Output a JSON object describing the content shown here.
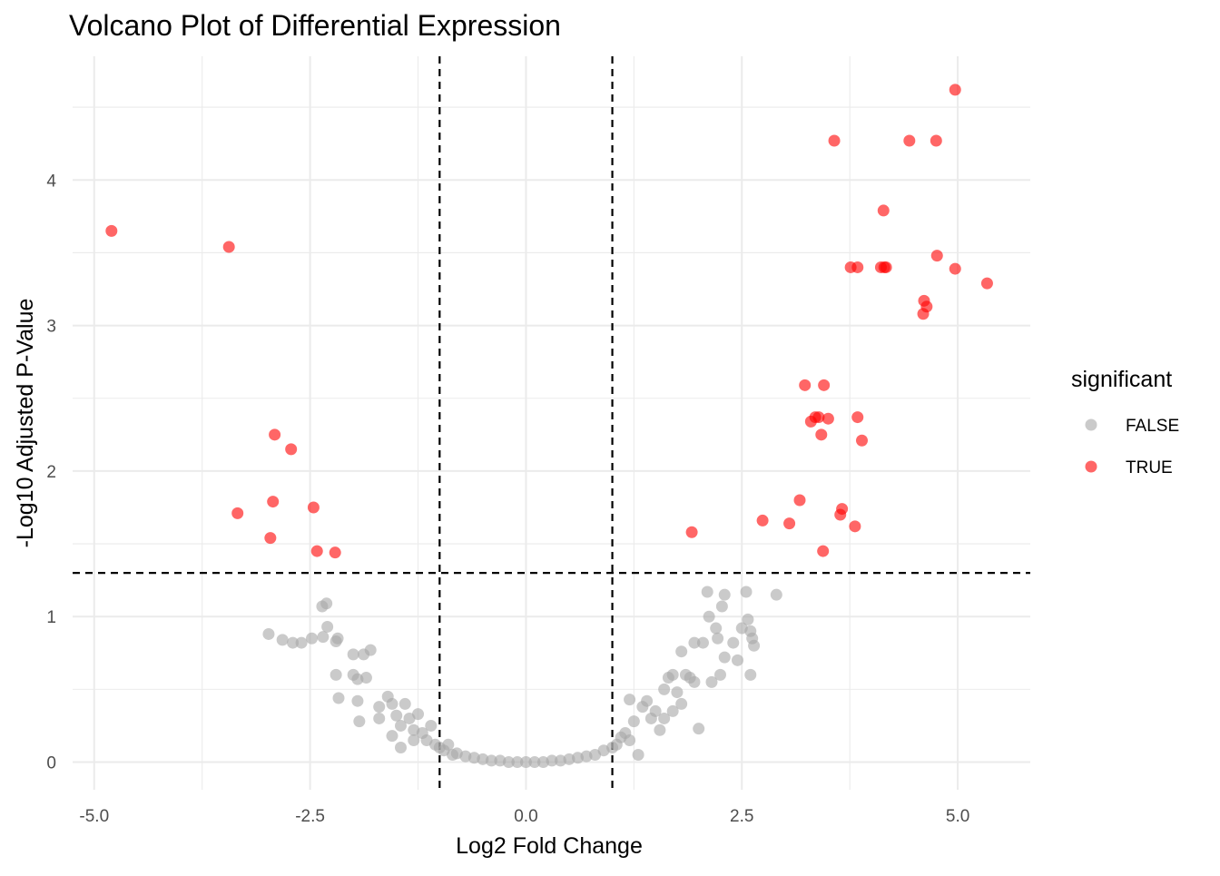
{
  "chart_data": {
    "type": "scatter",
    "title": "Volcano Plot of Differential Expression",
    "xlabel": "Log2 Fold Change",
    "ylabel": "-Log10 Adjusted P-Value",
    "xlim": [
      -5.25,
      5.84
    ],
    "ylim": [
      -0.19,
      4.85
    ],
    "x_ticks": [
      -5.0,
      -2.5,
      0.0,
      2.5,
      5.0
    ],
    "x_tick_labels": [
      "-5.0",
      "-2.5",
      "0.0",
      "2.5",
      "5.0"
    ],
    "y_ticks": [
      0,
      1,
      2,
      3,
      4
    ],
    "y_tick_labels": [
      "0",
      "1",
      "2",
      "3",
      "4"
    ],
    "grid": true,
    "thresholds": {
      "x": [
        -1,
        1
      ],
      "y": 1.3
    },
    "legend": {
      "title": "significant",
      "placement": "right",
      "entries": [
        "FALSE",
        "TRUE"
      ]
    },
    "colors": {
      "FALSE": "#a6a6a6",
      "TRUE": "#ff0000"
    },
    "series": [
      {
        "name": "TRUE",
        "points": [
          [
            -4.8,
            3.65
          ],
          [
            -3.44,
            3.54
          ],
          [
            -2.91,
            2.25
          ],
          [
            -2.72,
            2.15
          ],
          [
            -2.93,
            1.79
          ],
          [
            -3.34,
            1.71
          ],
          [
            -2.46,
            1.75
          ],
          [
            -2.96,
            1.54
          ],
          [
            -2.42,
            1.45
          ],
          [
            -2.21,
            1.44
          ],
          [
            4.97,
            4.62
          ],
          [
            3.57,
            4.27
          ],
          [
            4.44,
            4.27
          ],
          [
            4.75,
            4.27
          ],
          [
            4.14,
            3.79
          ],
          [
            4.76,
            3.48
          ],
          [
            3.76,
            3.4
          ],
          [
            3.84,
            3.4
          ],
          [
            4.11,
            3.4
          ],
          [
            4.15,
            3.4
          ],
          [
            4.17,
            3.4
          ],
          [
            4.97,
            3.39
          ],
          [
            5.34,
            3.29
          ],
          [
            4.61,
            3.17
          ],
          [
            4.64,
            3.13
          ],
          [
            4.6,
            3.08
          ],
          [
            3.23,
            2.59
          ],
          [
            3.45,
            2.59
          ],
          [
            3.3,
            2.34
          ],
          [
            3.35,
            2.37
          ],
          [
            3.39,
            2.37
          ],
          [
            3.5,
            2.36
          ],
          [
            3.84,
            2.37
          ],
          [
            3.42,
            2.25
          ],
          [
            3.89,
            2.21
          ],
          [
            3.17,
            1.8
          ],
          [
            3.66,
            1.74
          ],
          [
            3.64,
            1.7
          ],
          [
            2.74,
            1.66
          ],
          [
            3.05,
            1.64
          ],
          [
            3.81,
            1.62
          ],
          [
            1.92,
            1.58
          ],
          [
            3.44,
            1.45
          ]
        ]
      },
      {
        "name": "FALSE",
        "points": [
          [
            -2.98,
            0.88
          ],
          [
            -2.82,
            0.84
          ],
          [
            -2.7,
            0.82
          ],
          [
            -2.6,
            0.82
          ],
          [
            -2.48,
            0.85
          ],
          [
            -2.36,
            1.07
          ],
          [
            -2.31,
            1.09
          ],
          [
            -2.3,
            0.93
          ],
          [
            -2.35,
            0.86
          ],
          [
            -2.2,
            0.83
          ],
          [
            -2.18,
            0.85
          ],
          [
            -2.2,
            0.6
          ],
          [
            -2.0,
            0.6
          ],
          [
            -1.95,
            0.57
          ],
          [
            -1.85,
            0.58
          ],
          [
            -1.8,
            0.77
          ],
          [
            -1.88,
            0.74
          ],
          [
            -2.0,
            0.74
          ],
          [
            -2.17,
            0.44
          ],
          [
            -1.95,
            0.42
          ],
          [
            -1.93,
            0.28
          ],
          [
            -1.7,
            0.3
          ],
          [
            -1.6,
            0.45
          ],
          [
            -1.55,
            0.4
          ],
          [
            -1.5,
            0.32
          ],
          [
            -1.45,
            0.25
          ],
          [
            -1.4,
            0.4
          ],
          [
            -1.35,
            0.3
          ],
          [
            -1.3,
            0.22
          ],
          [
            -1.25,
            0.33
          ],
          [
            -1.2,
            0.2
          ],
          [
            -1.15,
            0.15
          ],
          [
            -1.1,
            0.25
          ],
          [
            -1.05,
            0.12
          ],
          [
            -1.0,
            0.1
          ],
          [
            -0.95,
            0.08
          ],
          [
            -0.9,
            0.12
          ],
          [
            -0.85,
            0.05
          ],
          [
            -0.8,
            0.06
          ],
          [
            -0.7,
            0.04
          ],
          [
            -0.6,
            0.03
          ],
          [
            -0.5,
            0.02
          ],
          [
            -0.4,
            0.01
          ],
          [
            -0.3,
            0.01
          ],
          [
            -0.2,
            0.0
          ],
          [
            -0.1,
            0.0
          ],
          [
            -1.55,
            0.18
          ],
          [
            -1.7,
            0.38
          ],
          [
            -1.45,
            0.1
          ],
          [
            -1.3,
            0.15
          ],
          [
            0.0,
            0.0
          ],
          [
            0.1,
            0.0
          ],
          [
            0.2,
            0.0
          ],
          [
            0.3,
            0.01
          ],
          [
            0.4,
            0.01
          ],
          [
            0.5,
            0.02
          ],
          [
            0.6,
            0.03
          ],
          [
            0.7,
            0.04
          ],
          [
            0.8,
            0.05
          ],
          [
            0.9,
            0.08
          ],
          [
            1.0,
            0.1
          ],
          [
            1.05,
            0.12
          ],
          [
            1.1,
            0.17
          ],
          [
            1.15,
            0.2
          ],
          [
            1.2,
            0.43
          ],
          [
            1.25,
            0.28
          ],
          [
            1.3,
            0.05
          ],
          [
            1.35,
            0.38
          ],
          [
            1.4,
            0.42
          ],
          [
            1.45,
            0.3
          ],
          [
            1.5,
            0.35
          ],
          [
            1.55,
            0.22
          ],
          [
            1.6,
            0.3
          ],
          [
            1.65,
            0.58
          ],
          [
            1.7,
            0.6
          ],
          [
            1.75,
            0.48
          ],
          [
            1.8,
            0.4
          ],
          [
            1.85,
            0.6
          ],
          [
            1.9,
            0.58
          ],
          [
            1.95,
            0.55
          ],
          [
            2.0,
            0.23
          ],
          [
            2.05,
            0.82
          ],
          [
            2.1,
            1.17
          ],
          [
            2.12,
            1.0
          ],
          [
            2.15,
            0.55
          ],
          [
            2.2,
            0.92
          ],
          [
            2.22,
            0.85
          ],
          [
            2.25,
            0.6
          ],
          [
            2.27,
            1.07
          ],
          [
            2.3,
            1.15
          ],
          [
            2.3,
            0.72
          ],
          [
            2.4,
            0.82
          ],
          [
            2.5,
            0.92
          ],
          [
            2.55,
            1.17
          ],
          [
            2.57,
            0.98
          ],
          [
            2.6,
            0.9
          ],
          [
            2.62,
            0.85
          ],
          [
            2.64,
            0.8
          ],
          [
            2.6,
            0.6
          ],
          [
            2.9,
            1.15
          ],
          [
            2.45,
            0.7
          ],
          [
            1.8,
            0.76
          ],
          [
            1.2,
            0.15
          ],
          [
            1.7,
            0.35
          ],
          [
            1.95,
            0.82
          ],
          [
            1.6,
            0.5
          ]
        ]
      }
    ]
  }
}
